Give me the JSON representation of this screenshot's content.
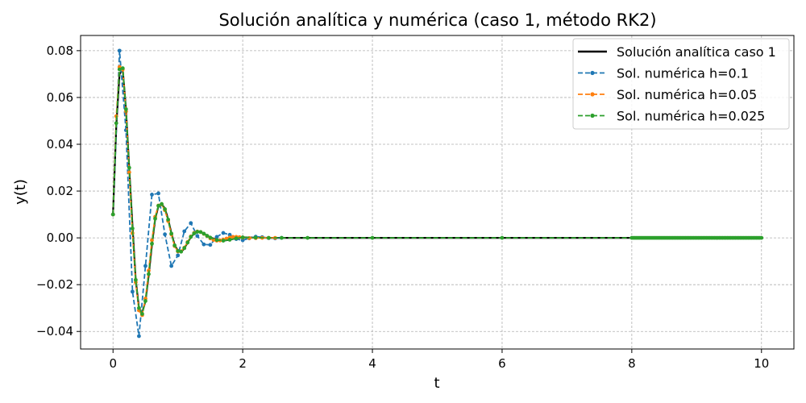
{
  "chart_data": {
    "type": "line",
    "title": "Solución analítica y numérica (caso 1, método RK2)",
    "xlabel": "t",
    "ylabel": "y(t)",
    "xlim": [
      -0.5,
      10.5
    ],
    "ylim": [
      -0.0475,
      0.0865
    ],
    "xticks": [
      0,
      2,
      4,
      6,
      8,
      10
    ],
    "yticks": [
      -0.04,
      -0.02,
      0.0,
      0.02,
      0.04,
      0.06,
      0.08
    ],
    "xtick_labels": [
      "0",
      "2",
      "4",
      "6",
      "8",
      "10"
    ],
    "ytick_labels": [
      "−0.04",
      "−0.02",
      "0.00",
      "0.02",
      "0.04",
      "0.06",
      "0.08"
    ],
    "grid": true,
    "legend_position": "top-right",
    "series": [
      {
        "name": "Solución analítica caso 1",
        "style": "solid",
        "color": "#000000",
        "x": [
          0.0,
          0.05,
          0.1,
          0.15,
          0.2,
          0.25,
          0.3,
          0.35,
          0.4,
          0.45,
          0.5,
          0.55,
          0.6,
          0.65,
          0.7,
          0.75,
          0.8,
          0.85,
          0.9,
          0.95,
          1.0,
          1.05,
          1.1,
          1.15,
          1.2,
          1.25,
          1.3,
          1.35,
          1.4,
          1.45,
          1.5,
          1.6,
          1.7,
          1.8,
          1.9,
          2.0,
          2.2,
          2.4,
          2.6,
          3.0,
          4.0,
          6.0,
          8.0,
          10.0
        ],
        "y": [
          0.01,
          0.048,
          0.07,
          0.072,
          0.055,
          0.03,
          0.005,
          -0.018,
          -0.03,
          -0.032,
          -0.027,
          -0.016,
          -0.003,
          0.008,
          0.0135,
          0.0145,
          0.0125,
          0.008,
          0.002,
          -0.003,
          -0.0055,
          -0.006,
          -0.0045,
          -0.002,
          0.0003,
          0.0018,
          0.0025,
          0.0025,
          0.0018,
          0.001,
          0.0002,
          -0.0008,
          -0.0012,
          -0.0008,
          -0.0002,
          0.0002,
          0.0001,
          0.0,
          0.0,
          0.0,
          0.0,
          0.0,
          0.0,
          0.0
        ]
      },
      {
        "name": "Sol. numérica h=0.1",
        "style": "dashed-markers",
        "color": "#1f77b4",
        "x": [
          0.0,
          0.1,
          0.2,
          0.3,
          0.4,
          0.5,
          0.6,
          0.7,
          0.8,
          0.9,
          1.0,
          1.1,
          1.2,
          1.3,
          1.4,
          1.5,
          1.6,
          1.7,
          1.8,
          1.9,
          2.0,
          2.1,
          2.2,
          2.3,
          2.4,
          2.5,
          2.6
        ],
        "y": [
          0.01,
          0.08,
          0.046,
          -0.023,
          -0.042,
          -0.012,
          0.0185,
          0.019,
          0.0015,
          -0.012,
          -0.0075,
          0.0028,
          0.0063,
          0.0008,
          -0.0028,
          -0.003,
          0.0004,
          0.0021,
          0.0013,
          -0.0005,
          -0.001,
          -0.0002,
          0.0005,
          0.0003,
          -0.0001,
          -0.0002,
          0.0
        ]
      },
      {
        "name": "Sol. numérica h=0.05",
        "style": "dashed-markers",
        "color": "#ff7f0e",
        "x": [
          0.0,
          0.05,
          0.1,
          0.15,
          0.2,
          0.25,
          0.3,
          0.35,
          0.4,
          0.45,
          0.5,
          0.55,
          0.6,
          0.65,
          0.7,
          0.75,
          0.8,
          0.85,
          0.9,
          0.95,
          1.0,
          1.05,
          1.1,
          1.15,
          1.2,
          1.25,
          1.3,
          1.35,
          1.4,
          1.45,
          1.5,
          1.55,
          1.6,
          1.65,
          1.7,
          1.75,
          1.8,
          1.85,
          1.9,
          1.95,
          2.0,
          2.1,
          2.2,
          2.3,
          2.4,
          2.5
        ],
        "y": [
          0.01,
          0.052,
          0.073,
          0.072,
          0.054,
          0.028,
          0.002,
          -0.019,
          -0.031,
          -0.033,
          -0.026,
          -0.014,
          -0.001,
          0.009,
          0.0138,
          0.0143,
          0.0118,
          0.0072,
          0.0015,
          -0.0035,
          -0.0058,
          -0.0058,
          -0.0042,
          -0.0018,
          0.0006,
          0.0021,
          0.0027,
          0.0025,
          0.0017,
          0.0008,
          -0.0002,
          -0.0009,
          -0.0012,
          -0.0011,
          -0.0008,
          -0.0003,
          0.0001,
          0.0004,
          0.0004,
          0.0003,
          0.0001,
          -0.0001,
          -0.0001,
          0.0,
          0.0,
          0.0
        ]
      },
      {
        "name": "Sol. numérica h=0.025",
        "style": "dashed-markers",
        "color": "#2ca02c",
        "x": [
          0.0,
          0.05,
          0.1,
          0.15,
          0.2,
          0.25,
          0.3,
          0.35,
          0.4,
          0.45,
          0.5,
          0.55,
          0.6,
          0.65,
          0.7,
          0.75,
          0.8,
          0.85,
          0.9,
          0.95,
          1.0,
          1.05,
          1.1,
          1.15,
          1.2,
          1.25,
          1.3,
          1.35,
          1.4,
          1.45,
          1.5,
          1.6,
          1.7,
          1.8,
          1.9,
          2.0,
          2.2,
          2.4,
          2.6,
          3.0,
          4.0,
          6.0,
          8.0,
          10.0
        ],
        "y": [
          0.01,
          0.049,
          0.072,
          0.0725,
          0.055,
          0.03,
          0.004,
          -0.018,
          -0.03,
          -0.0325,
          -0.027,
          -0.0155,
          -0.0025,
          0.0082,
          0.0137,
          0.0145,
          0.0123,
          0.0078,
          0.0018,
          -0.0032,
          -0.0056,
          -0.0059,
          -0.0044,
          -0.002,
          0.0004,
          0.0019,
          0.0026,
          0.0025,
          0.0018,
          0.0009,
          0.0001,
          -0.0009,
          -0.0012,
          -0.0008,
          -0.0002,
          0.0002,
          0.0001,
          0.0,
          0.0,
          0.0,
          0.0,
          0.0,
          0.0,
          0.0
        ]
      }
    ]
  }
}
